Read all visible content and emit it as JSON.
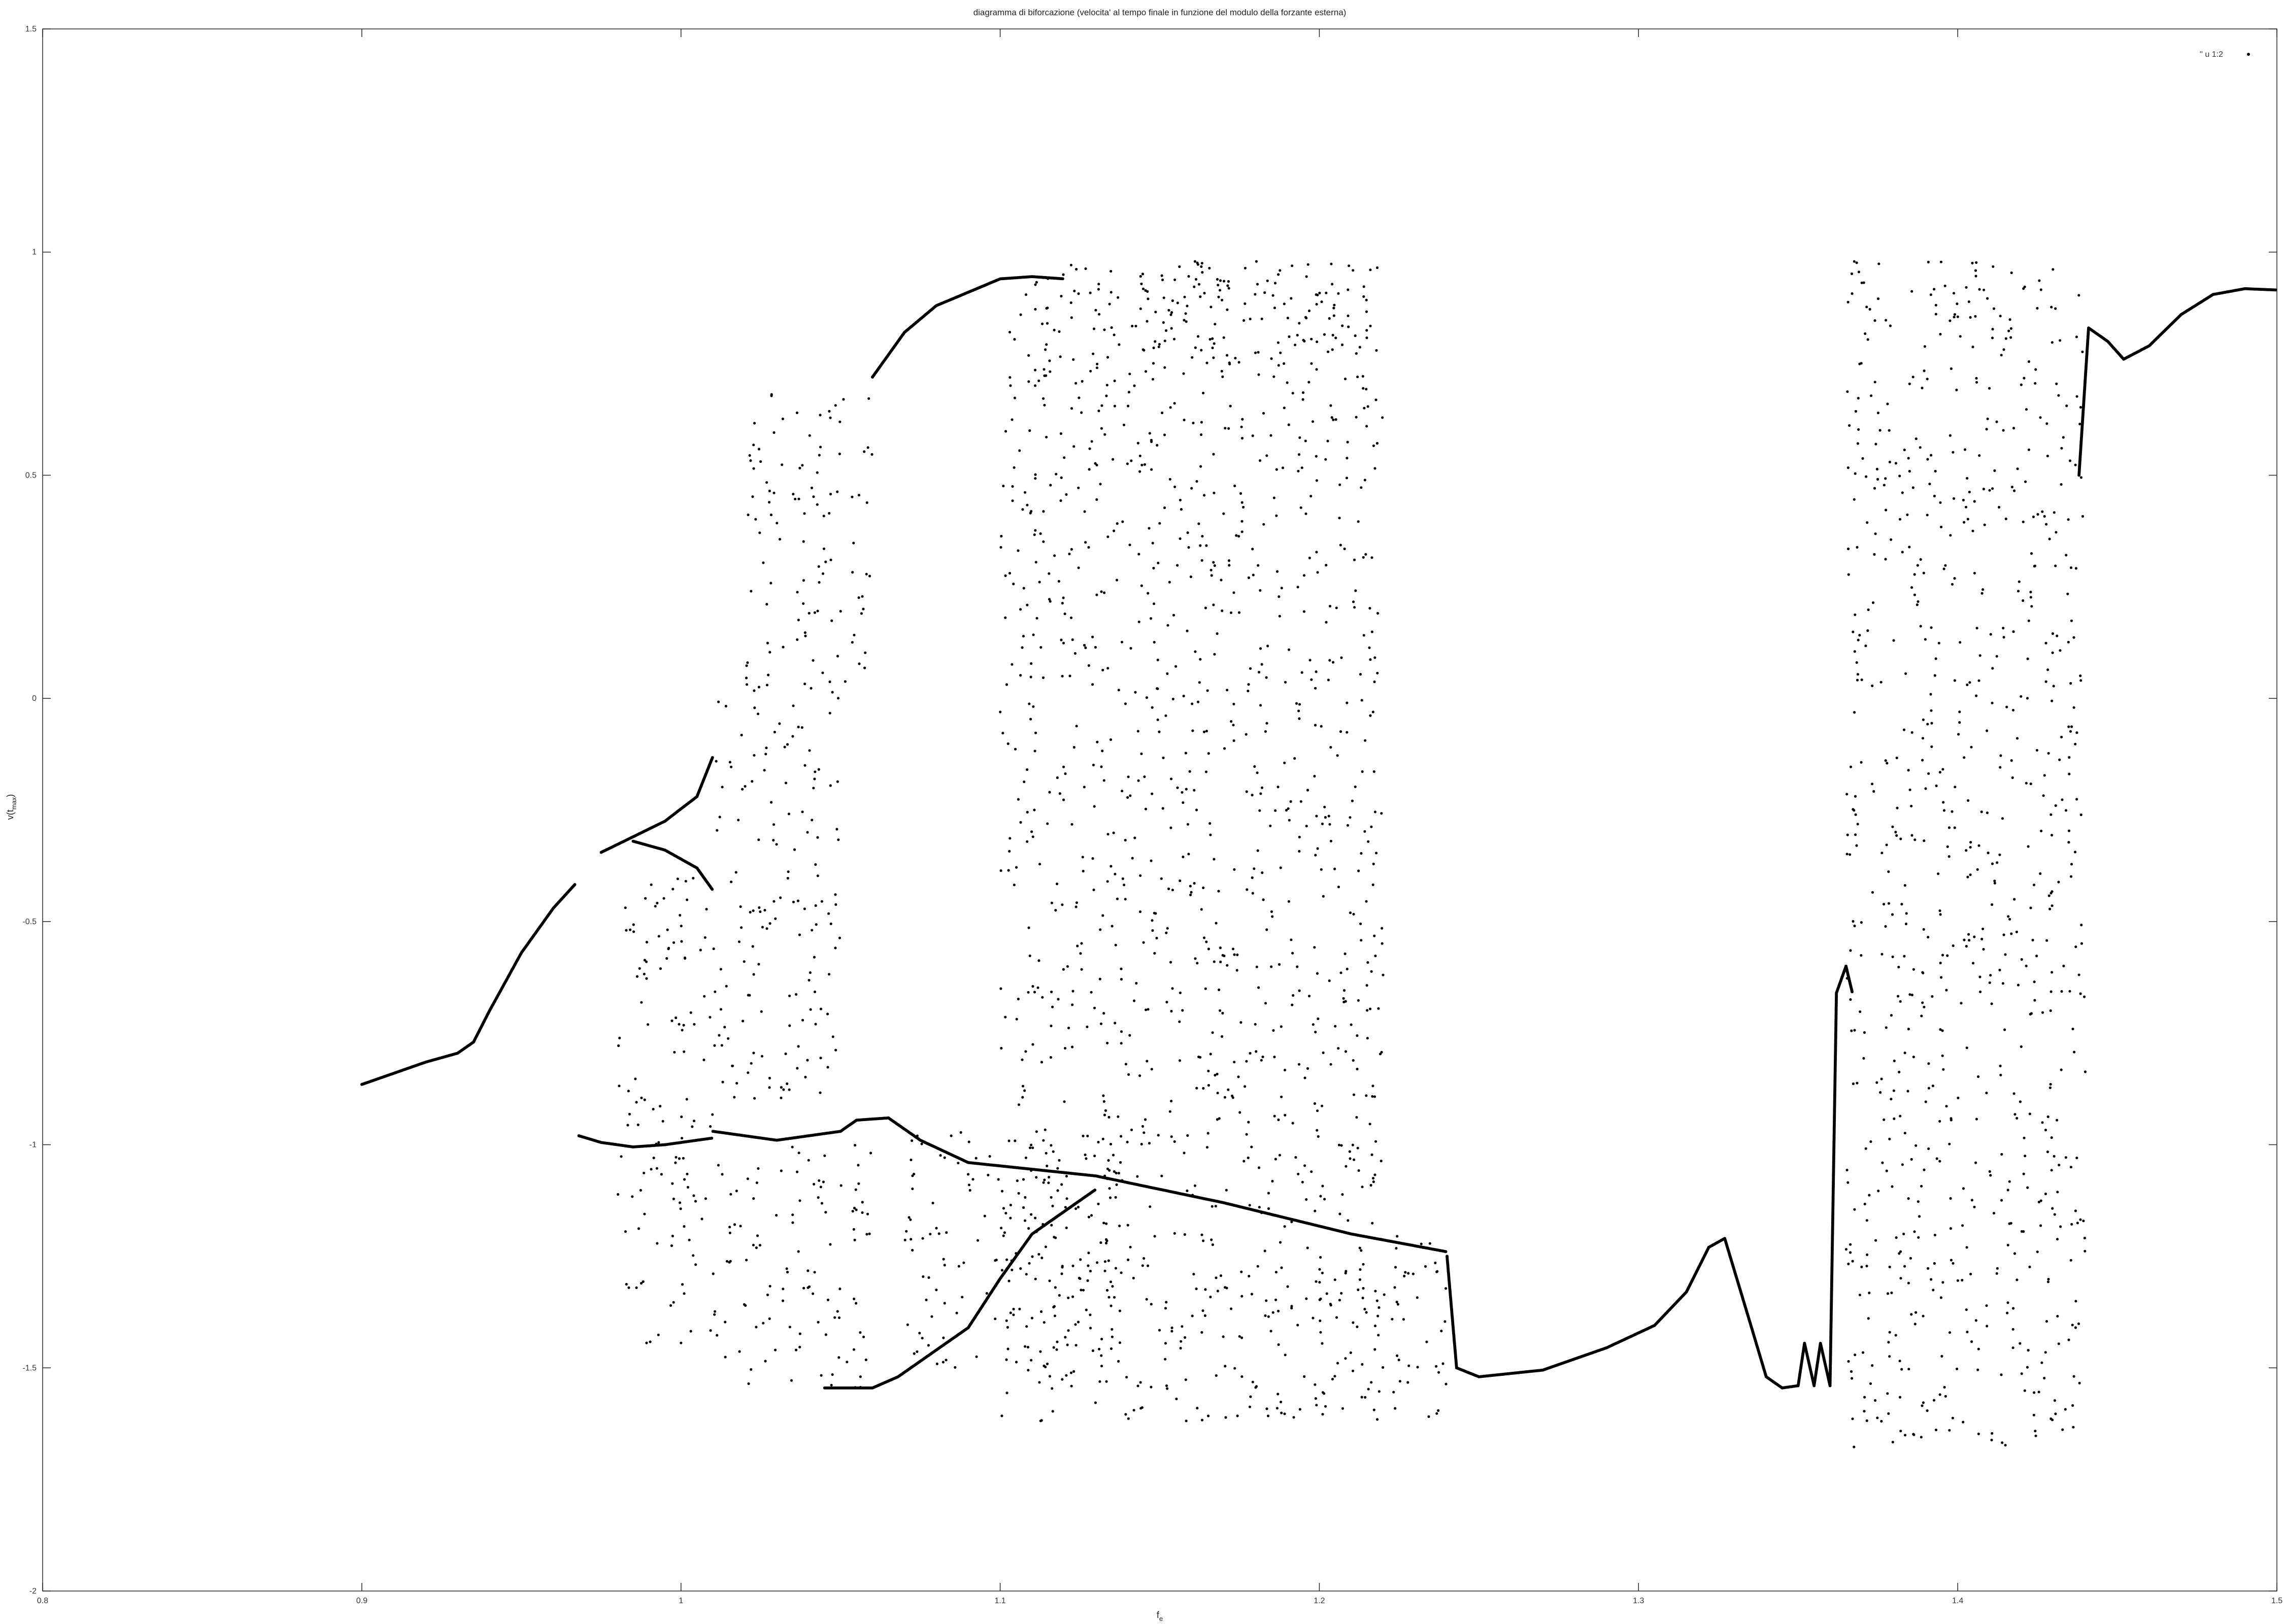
{
  "chart_data": {
    "type": "scatter",
    "title": "diagramma di biforcazione (velocita' al tempo finale in funzione del modulo della forzante esterna)",
    "xlabel": "f_e",
    "ylabel": "v(t_max)",
    "xlim": [
      0.8,
      1.5
    ],
    "ylim": [
      -2,
      1.5
    ],
    "xticks": [
      0.8,
      0.9,
      1,
      1.1,
      1.2,
      1.3,
      1.4,
      1.5
    ],
    "yticks": [
      -2,
      -1.5,
      -1,
      -0.5,
      0,
      0.5,
      1,
      1.5
    ],
    "xtick_labels": [
      "0.8",
      "0.9",
      "1",
      "1.1",
      "1.2",
      "1.3",
      "1.4",
      "1.5"
    ],
    "ytick_labels": [
      "-2",
      "-1.5",
      "-1",
      "-0.5",
      "0",
      "0.5",
      "1",
      "1.5"
    ],
    "grid": false,
    "legend_position": "top-right",
    "series": [
      {
        "name": "'' u 1:2",
        "color": "#000000",
        "marker": "dot",
        "curves": [
          [
            [
              0.9,
              -0.865
            ],
            [
              0.91,
              -0.84
            ],
            [
              0.92,
              -0.815
            ],
            [
              0.93,
              -0.795
            ],
            [
              0.935,
              -0.77
            ],
            [
              0.94,
              -0.7
            ],
            [
              0.95,
              -0.57
            ],
            [
              0.96,
              -0.47
            ],
            [
              0.967,
              -0.415
            ]
          ],
          [
            [
              0.968,
              -0.98
            ],
            [
              0.975,
              -0.995
            ],
            [
              0.985,
              -1.005
            ],
            [
              0.995,
              -1.0
            ],
            [
              1.005,
              -0.99
            ],
            [
              1.01,
              -0.985
            ]
          ],
          [
            [
              0.975,
              -0.345
            ],
            [
              0.985,
              -0.31
            ],
            [
              0.995,
              -0.275
            ],
            [
              1.005,
              -0.22
            ],
            [
              1.01,
              -0.13
            ]
          ],
          [
            [
              0.985,
              -0.32
            ],
            [
              0.995,
              -0.34
            ],
            [
              1.005,
              -0.38
            ],
            [
              1.01,
              -0.43
            ]
          ],
          [
            [
              1.01,
              -0.97
            ],
            [
              1.03,
              -0.99
            ],
            [
              1.045,
              -0.975
            ],
            [
              1.05,
              -0.97
            ],
            [
              1.055,
              -0.945
            ],
            [
              1.065,
              -0.94
            ],
            [
              1.075,
              -0.99
            ],
            [
              1.09,
              -1.04
            ],
            [
              1.13,
              -1.07
            ],
            [
              1.17,
              -1.13
            ],
            [
              1.21,
              -1.2
            ],
            [
              1.24,
              -1.24
            ]
          ],
          [
            [
              1.045,
              -1.545
            ],
            [
              1.06,
              -1.545
            ],
            [
              1.068,
              -1.52
            ],
            [
              1.08,
              -1.46
            ],
            [
              1.09,
              -1.41
            ],
            [
              1.1,
              -1.3
            ],
            [
              1.11,
              -1.2
            ],
            [
              1.13,
              -1.1
            ]
          ],
          [
            [
              1.06,
              0.72
            ],
            [
              1.07,
              0.82
            ],
            [
              1.08,
              0.88
            ],
            [
              1.09,
              0.91
            ],
            [
              1.1,
              0.94
            ],
            [
              1.11,
              0.945
            ],
            [
              1.12,
              0.94
            ]
          ],
          [
            [
              1.24,
              -1.25
            ],
            [
              1.243,
              -1.5
            ],
            [
              1.25,
              -1.52
            ],
            [
              1.27,
              -1.505
            ],
            [
              1.29,
              -1.455
            ],
            [
              1.305,
              -1.405
            ],
            [
              1.315,
              -1.33
            ],
            [
              1.322,
              -1.23
            ],
            [
              1.327,
              -1.21
            ],
            [
              1.335,
              -1.4
            ],
            [
              1.34,
              -1.52
            ],
            [
              1.345,
              -1.545
            ],
            [
              1.35,
              -1.54
            ],
            [
              1.352,
              -1.445
            ],
            [
              1.355,
              -1.54
            ],
            [
              1.357,
              -1.445
            ],
            [
              1.36,
              -1.54
            ],
            [
              1.362,
              -0.66
            ],
            [
              1.365,
              -0.6
            ],
            [
              1.367,
              -0.66
            ]
          ],
          [
            [
              1.438,
              0.5
            ],
            [
              1.441,
              0.83
            ],
            [
              1.447,
              0.8
            ],
            [
              1.452,
              0.76
            ],
            [
              1.46,
              0.79
            ],
            [
              1.47,
              0.86
            ],
            [
              1.48,
              0.905
            ],
            [
              1.49,
              0.918
            ],
            [
              1.5,
              0.915
            ]
          ]
        ],
        "scatter_regions": [
          [
            [
              0.98,
              1.01
            ],
            [
              -1.45,
              -0.4
            ]
          ],
          [
            [
              1.01,
              1.05
            ],
            [
              -0.9,
              0.0
            ]
          ],
          [
            [
              1.01,
              1.06
            ],
            [
              -1.55,
              -1.0
            ]
          ],
          [
            [
              1.02,
              1.06
            ],
            [
              0.0,
              0.7
            ]
          ],
          [
            [
              1.07,
              1.14
            ],
            [
              -1.5,
              -0.95
            ]
          ],
          [
            [
              1.1,
              1.22
            ],
            [
              -1.62,
              -0.9
            ]
          ],
          [
            [
              1.1,
              1.22
            ],
            [
              -0.9,
              0.98
            ]
          ],
          [
            [
              1.14,
              1.22
            ],
            [
              0.75,
              0.98
            ]
          ],
          [
            [
              1.2,
              1.24
            ],
            [
              -1.62,
              -1.2
            ]
          ],
          [
            [
              1.365,
              1.44
            ],
            [
              -1.68,
              -0.78
            ]
          ],
          [
            [
              1.365,
              1.44
            ],
            [
              -0.75,
              0.98
            ]
          ]
        ]
      }
    ]
  }
}
